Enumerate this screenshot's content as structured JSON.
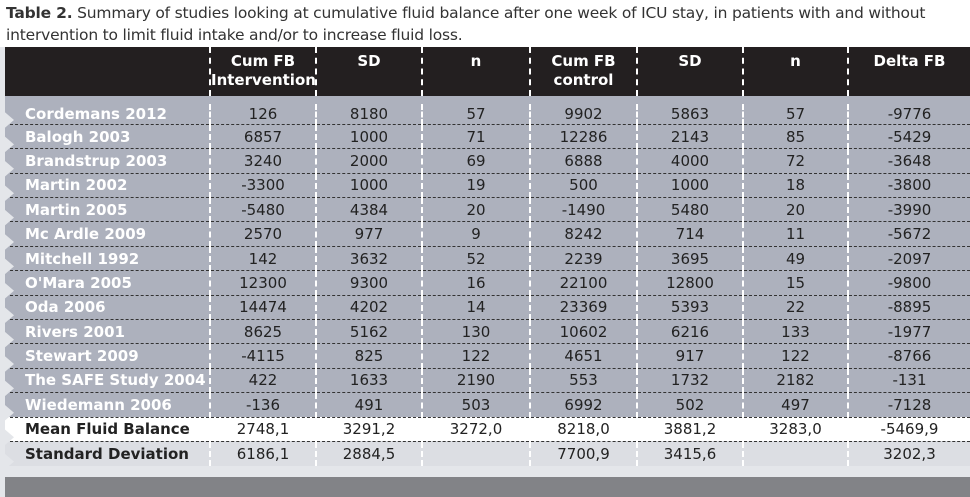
{
  "caption": {
    "label": "Table 2.",
    "text": "Summary of studies looking at cumulative fluid balance after one week of ICU stay, in patients with and without intervention to limit fluid intake and/or to increase fluid loss."
  },
  "headers": [
    "",
    "Cum FB Intervention",
    "SD",
    "n",
    "Cum FB control",
    "SD",
    "n",
    "Delta FB"
  ],
  "rows": [
    [
      "Cordemans 2012",
      "126",
      "8180",
      "57",
      "9902",
      "5863",
      "57",
      "-9776"
    ],
    [
      "Balogh 2003",
      "6857",
      "1000",
      "71",
      "12286",
      "2143",
      "85",
      "-5429"
    ],
    [
      "Brandstrup 2003",
      "3240",
      "2000",
      "69",
      "6888",
      "4000",
      "72",
      "-3648"
    ],
    [
      "Martin 2002",
      "-3300",
      "1000",
      "19",
      "500",
      "1000",
      "18",
      "-3800"
    ],
    [
      "Martin 2005",
      "-5480",
      "4384",
      "20",
      "-1490",
      "5480",
      "20",
      "-3990"
    ],
    [
      "Mc Ardle 2009",
      "2570",
      "977",
      "9",
      "8242",
      "714",
      "11",
      "-5672"
    ],
    [
      "Mitchell 1992",
      "142",
      "3632",
      "52",
      "2239",
      "3695",
      "49",
      "-2097"
    ],
    [
      "O'Mara 2005",
      "12300",
      "9300",
      "16",
      "22100",
      "12800",
      "15",
      "-9800"
    ],
    [
      "Oda 2006",
      "14474",
      "4202",
      "14",
      "23369",
      "5393",
      "22",
      "-8895"
    ],
    [
      "Rivers 2001",
      "8625",
      "5162",
      "130",
      "10602",
      "6216",
      "133",
      "-1977"
    ],
    [
      "Stewart 2009",
      "-4115",
      "825",
      "122",
      "4651",
      "917",
      "122",
      "-8766"
    ],
    [
      "The SAFE Study 2004",
      "422",
      "1633",
      "2190",
      "553",
      "1732",
      "2182",
      "-131"
    ],
    [
      "Wiedemann 2006",
      "-136",
      "491",
      "503",
      "6992",
      "502",
      "497",
      "-7128"
    ]
  ],
  "mean": [
    "Mean Fluid Balance",
    "2748,1",
    "3291,2",
    "3272,0",
    "8218,0",
    "3881,2",
    "3283,0",
    "-5469,9"
  ],
  "sd": [
    "Standard Deviation",
    "6186,1",
    "2884,5",
    "",
    "7700,9",
    "3415,6",
    "",
    "3202,3"
  ]
}
